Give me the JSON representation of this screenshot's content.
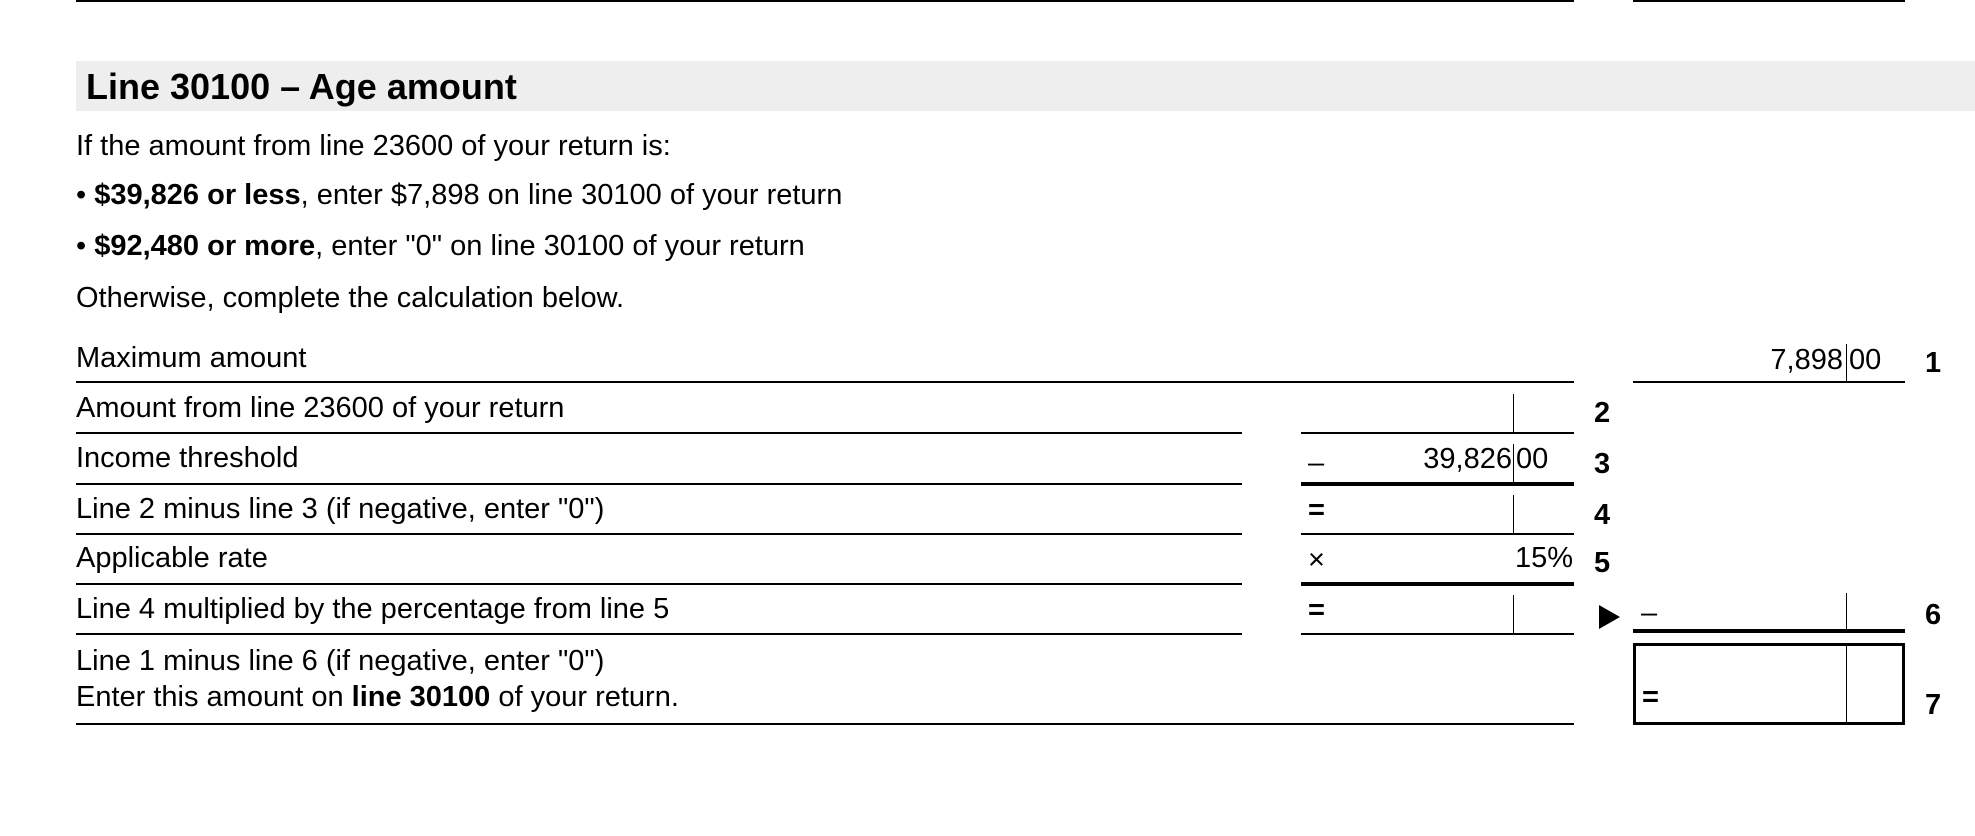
{
  "section": {
    "title": "Line 30100 – Age amount",
    "intro": "If the amount from line 23600 of your return is:",
    "bullets": [
      {
        "bold": "$39,826 or less",
        "rest": ", enter $7,898 on line 30100 of your return"
      },
      {
        "bold": "$92,480 or more",
        "rest": ", enter \"0\" on line 30100 of your return"
      }
    ],
    "otherwise": "Otherwise, complete the calculation below."
  },
  "lines": [
    {
      "num": "1",
      "label": "Maximum amount",
      "dollars": "7,898",
      "cents": "00"
    },
    {
      "num": "2",
      "label": "Amount from line 23600 of your return",
      "dollars": "",
      "cents": ""
    },
    {
      "num": "3",
      "label": "Income threshold",
      "operator": "–",
      "dollars": "39,826",
      "cents": "00"
    },
    {
      "num": "4",
      "label": "Line 2 minus line 3 (if negative, enter \"0\")",
      "operator": "=",
      "dollars": "",
      "cents": ""
    },
    {
      "num": "5",
      "label": "Applicable rate",
      "operator": "×",
      "value": "15%"
    },
    {
      "num": "6",
      "label": "Line 4 multiplied by the percentage from line 5",
      "operator": "=",
      "right_operator": "–",
      "dollars": "",
      "cents": ""
    },
    {
      "num": "7",
      "label": "Line 1 minus line 6 (if negative, enter \"0\")",
      "label2_pre": "Enter this amount on ",
      "label2_bold": "line 30100",
      "label2_post": " of your return.",
      "operator": "=",
      "dollars": "",
      "cents": ""
    }
  ],
  "header_band_color": "#eeeeee"
}
